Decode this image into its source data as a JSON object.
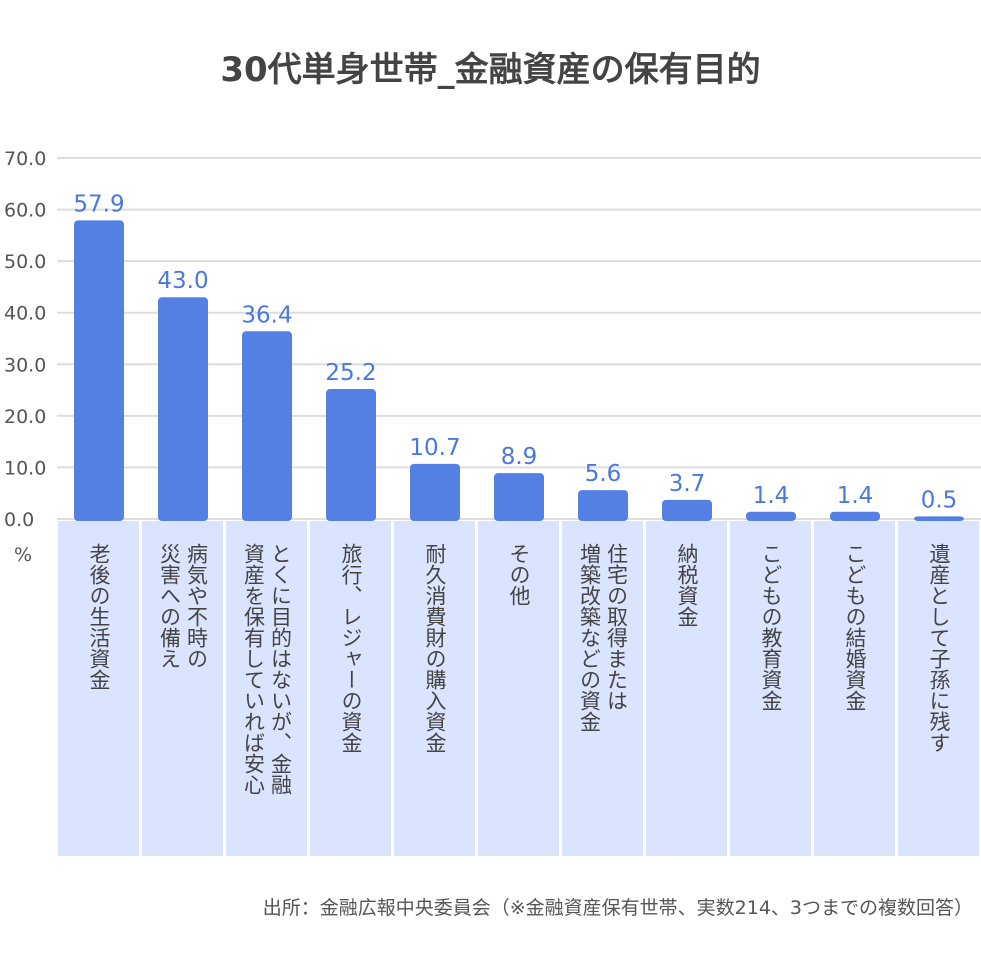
{
  "chart_data": {
    "type": "bar",
    "title": "30代単身世帯_金融資産の保有目的",
    "ylabel": "%",
    "ylim": [
      0,
      70
    ],
    "yticks": [
      "70.0",
      "60.0",
      "50.0",
      "40.0",
      "30.0",
      "20.0",
      "10.0",
      "0.0"
    ],
    "grid": true,
    "categories": [
      "老後の生活資金",
      "病気や不時の災害への備え",
      "とくに目的はないが、金融資産を保有していれば安心",
      "旅行、レジャーの資金",
      "耐久消費財の購入資金",
      "その他",
      "住宅の取得または増築改築などの資金",
      "納税資金",
      "こどもの教育資金",
      "こどもの結婚資金",
      "遺産として子孫に残す"
    ],
    "category_columns": [
      [
        "老後の生活資金"
      ],
      [
        "病気や不時の",
        "災害への備え"
      ],
      [
        "とくに目的はないが、金融",
        "資産を保有していれば安心"
      ],
      [
        "旅行、レジャーの資金"
      ],
      [
        "耐久消費財の購入資金"
      ],
      [
        "その他"
      ],
      [
        "住宅の取得または",
        "増築改築などの資金"
      ],
      [
        "納税資金"
      ],
      [
        "こどもの教育資金"
      ],
      [
        "こどもの結婚資金"
      ],
      [
        "遺産として子孫に残す"
      ]
    ],
    "values": [
      57.9,
      43.0,
      36.4,
      25.2,
      10.7,
      8.9,
      5.6,
      3.7,
      1.4,
      1.4,
      0.5
    ],
    "value_labels": [
      "57.9",
      "43.0",
      "36.4",
      "25.2",
      "10.7",
      "8.9",
      "5.6",
      "3.7",
      "1.4",
      "1.4",
      "0.5"
    ],
    "source": "出所：金融広報中央委員会（※金融資産保有世帯、実数214、3つまでの複数回答）"
  },
  "colors": {
    "bar": "#5580e3",
    "label_bg": "#dbe4ff",
    "grid": "#dddddd",
    "value_label": "#4a78de",
    "text": "#444444"
  }
}
